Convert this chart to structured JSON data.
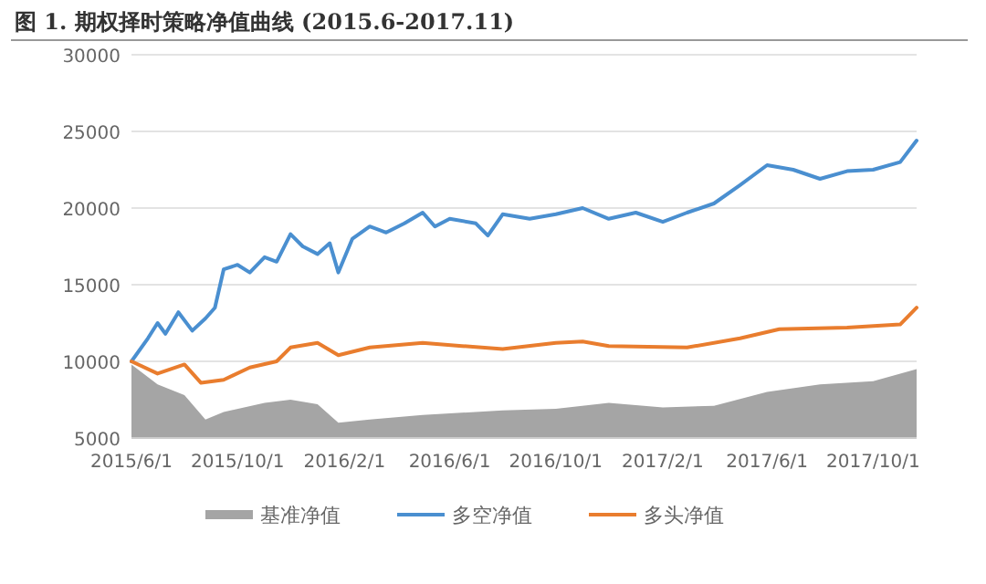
{
  "chart_data": {
    "type": "line",
    "title": "图 1. 期权择时策略净值曲线 (2015.6-2017.11)",
    "xlim": [
      "2015-06-01",
      "2017-11-20"
    ],
    "xticks": [
      {
        "value": "2015-06-01",
        "label": "2015/6/1"
      },
      {
        "value": "2015-10-01",
        "label": "2015/10/1"
      },
      {
        "value": "2016-02-01",
        "label": "2016/2/1"
      },
      {
        "value": "2016-06-01",
        "label": "2016/6/1"
      },
      {
        "value": "2016-10-01",
        "label": "2016/10/1"
      },
      {
        "value": "2017-02-01",
        "label": "2017/2/1"
      },
      {
        "value": "2017-06-01",
        "label": "2017/6/1"
      },
      {
        "value": "2017-10-01",
        "label": "2017/10/1"
      }
    ],
    "ylim": [
      5000,
      30000
    ],
    "yticks": [
      5000,
      10000,
      15000,
      20000,
      25000,
      30000
    ],
    "grid": "y",
    "legend": "bottom",
    "series": [
      {
        "name": "基准净值",
        "type": "area",
        "color": "#a5a5a5",
        "x": [
          "2015-06-01",
          "2015-07-01",
          "2015-08-01",
          "2015-08-25",
          "2015-09-15",
          "2015-11-01",
          "2015-12-01",
          "2016-01-01",
          "2016-01-25",
          "2016-03-01",
          "2016-05-01",
          "2016-08-01",
          "2016-10-01",
          "2016-12-01",
          "2017-02-01",
          "2017-04-01",
          "2017-06-01",
          "2017-08-01",
          "2017-10-01",
          "2017-11-20"
        ],
        "values": [
          9800,
          8500,
          7800,
          6200,
          6700,
          7300,
          7500,
          7200,
          6000,
          6200,
          6500,
          6800,
          6900,
          7300,
          7000,
          7100,
          8000,
          8500,
          8700,
          9500
        ]
      },
      {
        "name": "多空净值",
        "type": "line",
        "color": "#4a8fd0",
        "x": [
          "2015-06-01",
          "2015-06-20",
          "2015-07-01",
          "2015-07-10",
          "2015-07-25",
          "2015-08-10",
          "2015-08-25",
          "2015-09-05",
          "2015-09-15",
          "2015-10-01",
          "2015-10-15",
          "2015-11-01",
          "2015-11-15",
          "2015-12-01",
          "2015-12-15",
          "2016-01-01",
          "2016-01-15",
          "2016-01-25",
          "2016-02-10",
          "2016-03-01",
          "2016-03-20",
          "2016-04-10",
          "2016-05-01",
          "2016-05-15",
          "2016-06-01",
          "2016-07-01",
          "2016-07-15",
          "2016-08-01",
          "2016-09-01",
          "2016-10-01",
          "2016-11-01",
          "2016-12-01",
          "2017-01-01",
          "2017-02-01",
          "2017-03-01",
          "2017-04-01",
          "2017-05-01",
          "2017-06-01",
          "2017-07-01",
          "2017-08-01",
          "2017-09-01",
          "2017-10-01",
          "2017-11-01",
          "2017-11-20"
        ],
        "values": [
          10000,
          11500,
          12500,
          11800,
          13200,
          12000,
          12800,
          13500,
          16000,
          16300,
          15800,
          16800,
          16500,
          18300,
          17500,
          17000,
          17700,
          15800,
          18000,
          18800,
          18400,
          19000,
          19700,
          18800,
          19300,
          19000,
          18200,
          19600,
          19300,
          19600,
          20000,
          19300,
          19700,
          19100,
          19700,
          20300,
          21500,
          22800,
          22500,
          21900,
          22400,
          22500,
          23000,
          24400
        ]
      },
      {
        "name": "多头净值",
        "type": "line",
        "color": "#e97d2e",
        "x": [
          "2015-06-01",
          "2015-07-01",
          "2015-08-01",
          "2015-08-20",
          "2015-09-15",
          "2015-10-15",
          "2015-11-15",
          "2015-12-01",
          "2016-01-01",
          "2016-01-25",
          "2016-03-01",
          "2016-05-01",
          "2016-06-15",
          "2016-08-01",
          "2016-10-01",
          "2016-11-01",
          "2016-12-01",
          "2017-03-01",
          "2017-05-01",
          "2017-06-15",
          "2017-09-01",
          "2017-11-01",
          "2017-11-20"
        ],
        "values": [
          10000,
          9200,
          9800,
          8600,
          8800,
          9600,
          10000,
          10900,
          11200,
          10400,
          10900,
          11200,
          11000,
          10800,
          11200,
          11300,
          11000,
          10900,
          11500,
          12100,
          12200,
          12400,
          13500
        ]
      }
    ]
  }
}
